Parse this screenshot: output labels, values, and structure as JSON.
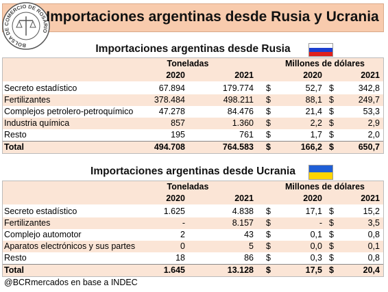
{
  "header": {
    "title": "Importaciones argentinas desde Rusia y Ucrania",
    "logo_text": "BOLSA DE COMERCIO DE ROSARIO"
  },
  "tables": [
    {
      "title": "Importaciones argentinas desde Rusia",
      "groups": [
        "Toneladas",
        "Millones de dólares"
      ],
      "years": [
        "2020",
        "2021",
        "2020",
        "2021"
      ],
      "rows": [
        [
          "Secreto estadístico",
          "67.894",
          "179.774",
          "$",
          "52,7",
          "$",
          "342,8"
        ],
        [
          "Fertilizantes",
          "378.484",
          "498.211",
          "$",
          "88,1",
          "$",
          "249,7"
        ],
        [
          "Complejos petrolero-petroquímico",
          "47.278",
          "84.476",
          "$",
          "21,4",
          "$",
          "53,3"
        ],
        [
          "Industria química",
          "857",
          "1.360",
          "$",
          "2,2",
          "$",
          "2,9"
        ],
        [
          "Resto",
          "195",
          "761",
          "$",
          "1,7",
          "$",
          "2,0"
        ],
        [
          "Total",
          "494.708",
          "764.583",
          "$",
          "166,2",
          "$",
          "650,7"
        ]
      ]
    },
    {
      "title": "Importaciones argentinas desde Ucrania",
      "groups": [
        "Toneladas",
        "Millones de dólares"
      ],
      "years": [
        "2020",
        "2021",
        "2020",
        "2021"
      ],
      "rows": [
        [
          "Secreto estadístico",
          "1.625",
          "4.838",
          "$",
          "17,1",
          "$",
          "15,2"
        ],
        [
          "Fertilizantes",
          "-",
          "8.157",
          "$",
          "-",
          "$",
          "3,5"
        ],
        [
          "Complejo automotor",
          "2",
          "43",
          "$",
          "0,1",
          "$",
          "0,8"
        ],
        [
          "Aparatos electrónicos y sus partes",
          "0",
          "5",
          "$",
          "0,0",
          "$",
          "0,1"
        ],
        [
          "Resto",
          "18",
          "86",
          "$",
          "0,3",
          "$",
          "0,8"
        ],
        [
          "Total",
          "1.645",
          "13.128",
          "$",
          "17,5",
          "$",
          "20,4"
        ]
      ]
    }
  ],
  "footer": "@BCRmercados en base a INDEC"
}
